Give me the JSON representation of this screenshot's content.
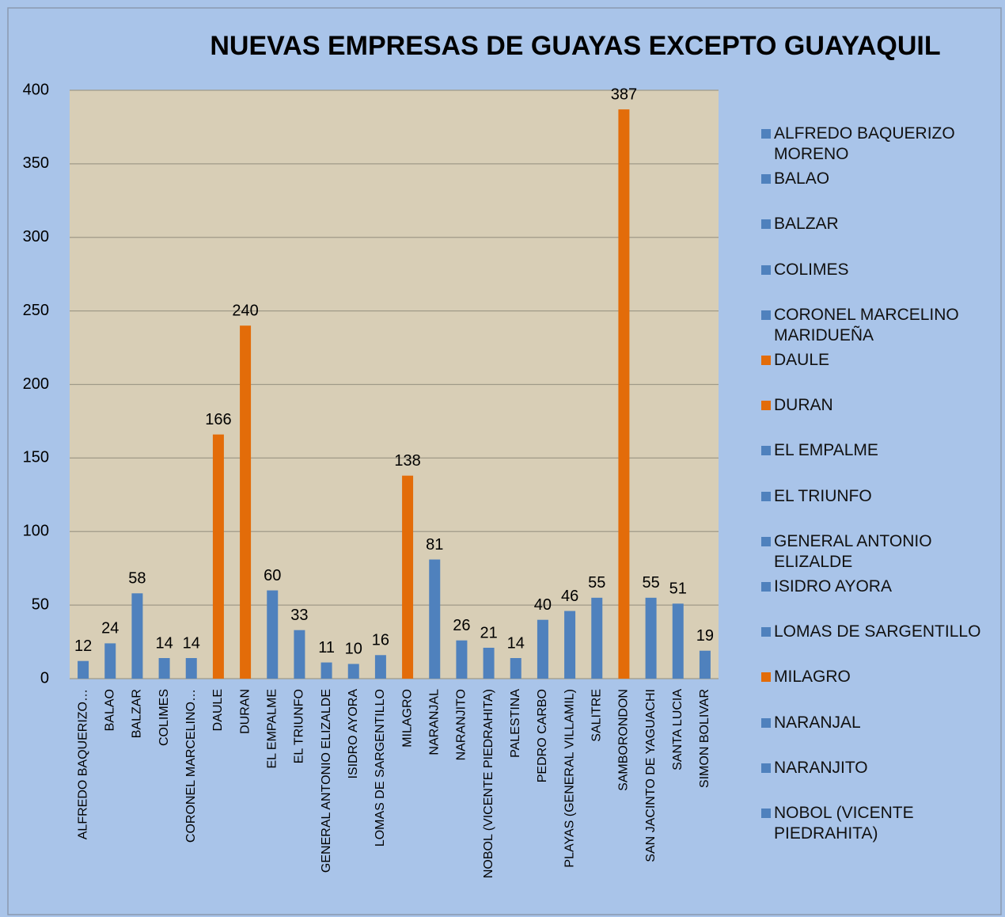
{
  "chart_data": {
    "type": "bar",
    "title": "NUEVAS EMPRESAS DE GUAYAS EXCEPTO GUAYAQUIL",
    "categories": [
      "ALFREDO BAQUERIZO…",
      "BALAO",
      "BALZAR",
      "COLIMES",
      "CORONEL MARCELINO…",
      "DAULE",
      "DURAN",
      "EL EMPALME",
      "EL TRIUNFO",
      "GENERAL ANTONIO ELIZALDE",
      "ISIDRO AYORA",
      "LOMAS DE SARGENTILLO",
      "MILAGRO",
      "NARANJAL",
      "NARANJITO",
      "NOBOL (VICENTE PIEDRAHITA)",
      "PALESTINA",
      "PEDRO CARBO",
      "PLAYAS (GENERAL VILLAMIL)",
      "SALITRE",
      "SAMBORONDON",
      "SAN JACINTO DE YAGUACHI",
      "SANTA LUCIA",
      "SIMON BOLIVAR"
    ],
    "values": [
      12,
      24,
      58,
      14,
      14,
      166,
      240,
      60,
      33,
      11,
      10,
      16,
      138,
      81,
      26,
      21,
      14,
      40,
      46,
      55,
      387,
      55,
      51,
      19
    ],
    "colors": [
      "#4f81bd",
      "#4f81bd",
      "#4f81bd",
      "#4f81bd",
      "#4f81bd",
      "#e36c09",
      "#e36c09",
      "#4f81bd",
      "#4f81bd",
      "#4f81bd",
      "#4f81bd",
      "#4f81bd",
      "#e36c09",
      "#4f81bd",
      "#4f81bd",
      "#4f81bd",
      "#4f81bd",
      "#4f81bd",
      "#4f81bd",
      "#4f81bd",
      "#e36c09",
      "#4f81bd",
      "#4f81bd",
      "#4f81bd"
    ],
    "ylim": [
      0,
      400
    ],
    "yticks": [
      0,
      50,
      100,
      150,
      200,
      250,
      300,
      350,
      400
    ],
    "grid": true,
    "legend": [
      {
        "name": "ALFREDO BAQUERIZO MORENO",
        "color": "#4f81bd"
      },
      {
        "name": "BALAO",
        "color": "#4f81bd"
      },
      {
        "name": "BALZAR",
        "color": "#4f81bd"
      },
      {
        "name": "COLIMES",
        "color": "#4f81bd"
      },
      {
        "name": "CORONEL MARCELINO MARIDUEÑA",
        "color": "#4f81bd"
      },
      {
        "name": "DAULE",
        "color": "#e36c09"
      },
      {
        "name": "DURAN",
        "color": "#e36c09"
      },
      {
        "name": "EL EMPALME",
        "color": "#4f81bd"
      },
      {
        "name": "EL TRIUNFO",
        "color": "#4f81bd"
      },
      {
        "name": "GENERAL ANTONIO ELIZALDE",
        "color": "#4f81bd"
      },
      {
        "name": "ISIDRO AYORA",
        "color": "#4f81bd"
      },
      {
        "name": "LOMAS DE SARGENTILLO",
        "color": "#4f81bd"
      },
      {
        "name": "MILAGRO",
        "color": "#e36c09"
      },
      {
        "name": "NARANJAL",
        "color": "#4f81bd"
      },
      {
        "name": "NARANJITO",
        "color": "#4f81bd"
      },
      {
        "name": "NOBOL (VICENTE PIEDRAHITA)",
        "color": "#4f81bd"
      }
    ]
  }
}
